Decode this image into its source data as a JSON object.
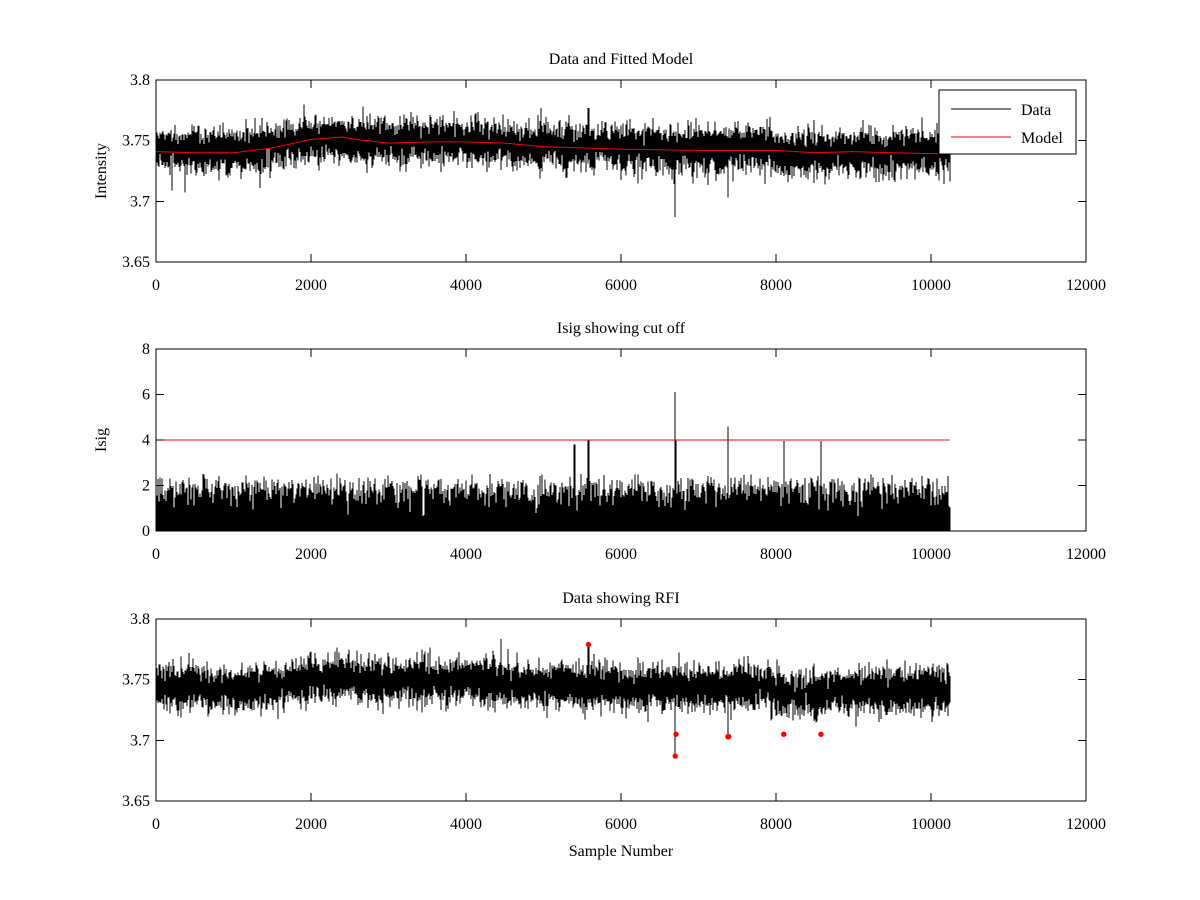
{
  "chart_data": [
    {
      "id": "fit",
      "type": "line",
      "title": "Data and Fitted Model",
      "xlabel": "",
      "ylabel": "Intensity",
      "xlim": [
        0,
        12000
      ],
      "ylim": [
        3.65,
        3.8
      ],
      "xticks": [
        0,
        2000,
        4000,
        6000,
        8000,
        10000,
        12000
      ],
      "xtick_labels": [
        "0",
        "2000",
        "4000",
        "6000",
        "8000",
        "10000",
        "12000"
      ],
      "yticks": [
        3.65,
        3.7,
        3.75,
        3.8
      ],
      "ytick_labels": [
        "3.65",
        "3.7",
        "3.75",
        "3.8"
      ],
      "legend": {
        "position": "top-right",
        "entries": [
          {
            "label": "Data",
            "color": "#000000"
          },
          {
            "label": "Model",
            "color": "#ff0000"
          }
        ]
      },
      "series": [
        {
          "name": "Data",
          "color": "#000000",
          "x_range": [
            0,
            10240
          ],
          "trend": {
            "x": [
              0,
              1000,
              1500,
              2000,
              2500,
              3000,
              4000,
              5000,
              6000,
              7000,
              7900,
              8000,
              9000,
              10240
            ],
            "y": [
              3.744,
              3.741,
              3.745,
              3.752,
              3.752,
              3.749,
              3.75,
              3.746,
              3.744,
              3.743,
              3.745,
              3.738,
              3.741,
              3.741
            ]
          },
          "noise_sd": 0.0085,
          "spikes": [
            {
              "x": 6700,
              "y": 3.687
            },
            {
              "x": 7380,
              "y": 3.703
            },
            {
              "x": 5580,
              "y": 3.777
            }
          ]
        },
        {
          "name": "Model",
          "color": "#ff0000",
          "x": [
            0,
            500,
            1000,
            1500,
            2000,
            2400,
            2600,
            3000,
            3500,
            4000,
            4500,
            5000,
            5500,
            6000,
            7000,
            8000,
            8500,
            9000,
            9500,
            10240
          ],
          "y": [
            3.741,
            3.74,
            3.74,
            3.744,
            3.751,
            3.753,
            3.751,
            3.748,
            3.749,
            3.749,
            3.748,
            3.745,
            3.744,
            3.743,
            3.742,
            3.742,
            3.74,
            3.741,
            3.74,
            3.739
          ]
        }
      ]
    },
    {
      "id": "isig",
      "type": "line",
      "title": "Isig showing cut off",
      "xlabel": "",
      "ylabel": "Isig",
      "xlim": [
        0,
        12000
      ],
      "ylim": [
        0,
        8
      ],
      "xticks": [
        0,
        2000,
        4000,
        6000,
        8000,
        10000,
        12000
      ],
      "xtick_labels": [
        "0",
        "2000",
        "4000",
        "6000",
        "8000",
        "10000",
        "12000"
      ],
      "yticks": [
        0,
        2,
        4,
        6,
        8
      ],
      "ytick_labels": [
        "0",
        "2",
        "4",
        "6",
        "8"
      ],
      "series": [
        {
          "name": "Isig",
          "color": "#000000",
          "x_range": [
            0,
            10240
          ],
          "typical_max": 1.6,
          "spikes": [
            {
              "x": 6700,
              "y": 6.1
            },
            {
              "x": 7380,
              "y": 4.6
            },
            {
              "x": 5580,
              "y": 4.0
            },
            {
              "x": 8100,
              "y": 3.95
            },
            {
              "x": 8580,
              "y": 3.95
            },
            {
              "x": 5400,
              "y": 3.8
            },
            {
              "x": 6710,
              "y": 4.0
            }
          ]
        },
        {
          "name": "Cut off",
          "color": "#ff0000",
          "x": [
            0,
            10240
          ],
          "y": [
            4,
            4
          ]
        }
      ]
    },
    {
      "id": "rfi",
      "type": "line",
      "title": "Data showing RFI",
      "xlabel": "Sample Number",
      "ylabel": "",
      "xlim": [
        0,
        12000
      ],
      "ylim": [
        3.65,
        3.8
      ],
      "xticks": [
        0,
        2000,
        4000,
        6000,
        8000,
        10000,
        12000
      ],
      "xtick_labels": [
        "0",
        "2000",
        "4000",
        "6000",
        "8000",
        "10000",
        "12000"
      ],
      "yticks": [
        3.65,
        3.7,
        3.75,
        3.8
      ],
      "ytick_labels": [
        "3.65",
        "3.7",
        "3.75",
        "3.8"
      ],
      "series": [
        {
          "name": "Data",
          "color": "#000000",
          "x_range": [
            0,
            10240
          ],
          "trend": {
            "x": [
              0,
              1000,
              1500,
              2000,
              2500,
              3000,
              4000,
              5000,
              6000,
              7000,
              7900,
              8000,
              9000,
              10240
            ],
            "y": [
              3.744,
              3.741,
              3.745,
              3.752,
              3.752,
              3.749,
              3.75,
              3.746,
              3.744,
              3.743,
              3.745,
              3.738,
              3.741,
              3.741
            ]
          },
          "noise_sd": 0.0085,
          "spikes": [
            {
              "x": 6700,
              "y": 3.687
            },
            {
              "x": 7380,
              "y": 3.703
            },
            {
              "x": 5580,
              "y": 3.777
            }
          ]
        },
        {
          "name": "RFI",
          "type": "scatter",
          "color": "#ff0000",
          "x": [
            5580,
            6700,
            6710,
            7380,
            7390,
            8100,
            8580
          ],
          "y": [
            3.779,
            3.687,
            3.705,
            3.703,
            3.703,
            3.705,
            3.705
          ]
        }
      ]
    }
  ]
}
